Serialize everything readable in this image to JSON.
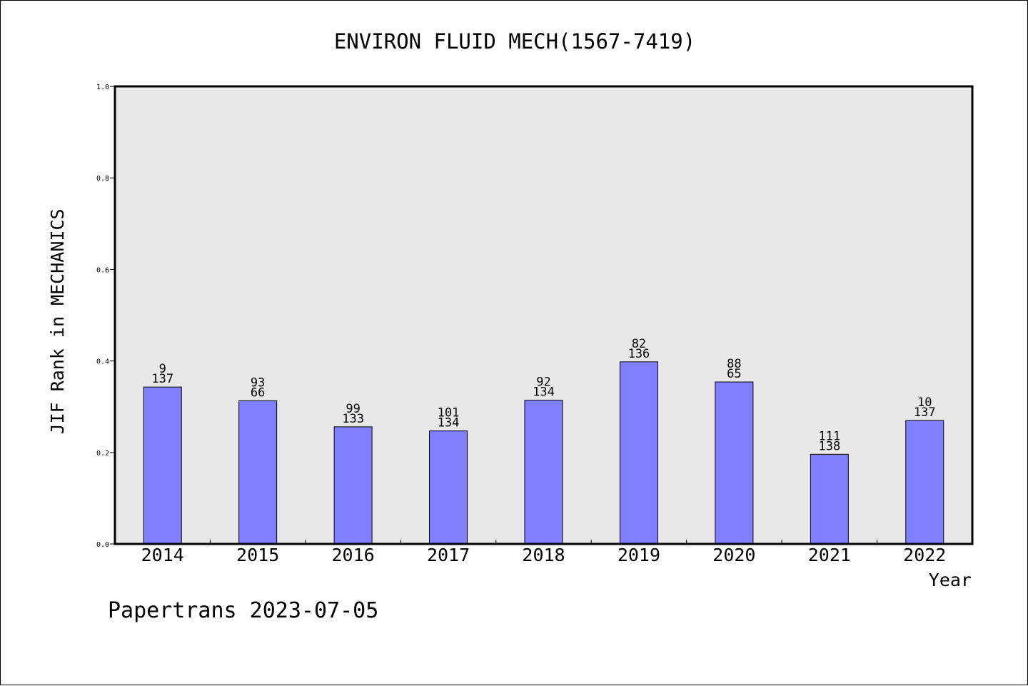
{
  "chart_data": {
    "type": "bar",
    "title": "ENVIRON FLUID MECH(1567-7419)",
    "xlabel": "Year",
    "ylabel": "JIF Rank in MECHANICS",
    "footer": "Papertrans 2023-07-05",
    "ylim": [
      0,
      1
    ],
    "yticks": [
      "0.0",
      "0.2",
      "0.4",
      "0.6",
      "0.8",
      "1.0"
    ],
    "grid": false,
    "categories": [
      "2014",
      "2015",
      "2016",
      "2017",
      "2018",
      "2019",
      "2020",
      "2021",
      "2022"
    ],
    "values": [
      0.343,
      0.313,
      0.256,
      0.247,
      0.314,
      0.398,
      0.354,
      0.196,
      0.27
    ],
    "labels_top": [
      "9",
      "93",
      "99",
      "101",
      "92",
      "82",
      "88",
      "111",
      "10"
    ],
    "labels_bottom": [
      "137",
      "66",
      "133",
      "134",
      "134",
      "136",
      "65",
      "138",
      "137"
    ],
    "colors": {
      "bar": "#8080ff",
      "plot_bg": "#e8e8e8",
      "axis": "#000000"
    }
  }
}
